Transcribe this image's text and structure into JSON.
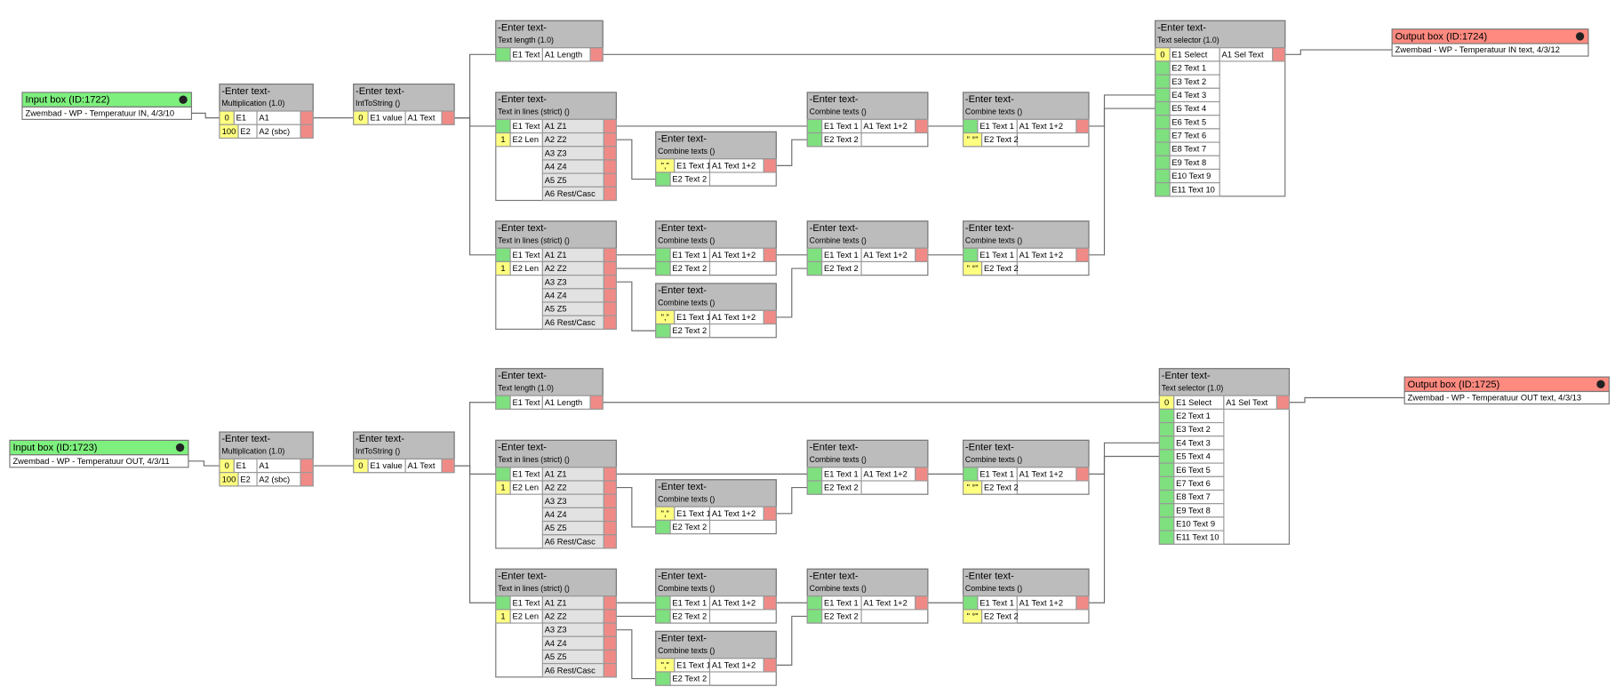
{
  "groups": [
    {
      "blocks": [
        {
          "header": "Input box (ID:1722)",
          "text": "Zwembad - WP - Temperatuur IN, 4/3/10"
        },
        {
          "header": "-Enter text-",
          "subtitle": "Multiplication (1.0)",
          "inputs": [
            {
              "label": "E1",
              "const": "0"
            },
            {
              "label": "E2",
              "const": "100"
            }
          ],
          "outputs": [
            "A1",
            "A2 (sbc)"
          ]
        },
        {
          "header": "-Enter text-",
          "subtitle": "IntToString ()",
          "inputs": [
            {
              "label": "E1 value",
              "const": "0"
            }
          ],
          "outputs": [
            "A1 Text"
          ]
        },
        {
          "header": "-Enter text-",
          "subtitle": "Text length (1.0)",
          "inputs": [
            {
              "label": "E1 Text"
            }
          ],
          "outputs": [
            "A1 Length"
          ]
        },
        {
          "header": "-Enter text-",
          "subtitle": "Text in lines (strict) ()",
          "inputs": [
            {
              "label": "E1 Text"
            },
            {
              "label": "E2 Len",
              "const": "1"
            }
          ],
          "outputs": [
            "A1 Z1",
            "A2 Z2",
            "A3 Z3",
            "A4 Z4",
            "A5 Z5",
            "A6 Rest/Casc"
          ]
        },
        {
          "header": "-Enter text-",
          "subtitle": "Combine texts ()",
          "inputs": [
            {
              "label": "E1 Text 1",
              "const": "\",\""
            },
            {
              "label": "E2 Text 2"
            }
          ],
          "outputs": [
            "A1 Text 1+2"
          ]
        },
        {
          "header": "-Enter text-",
          "subtitle": "Combine texts ()",
          "inputs": [
            {
              "label": "E1 Text 1"
            },
            {
              "label": "E2 Text 2"
            }
          ],
          "outputs": [
            "A1 Text 1+2"
          ]
        },
        {
          "header": "-Enter text-",
          "subtitle": "Combine texts ()",
          "inputs": [
            {
              "label": "E1 Text 1"
            },
            {
              "label": "E2 Text 2",
              "const": "\" °\""
            }
          ],
          "outputs": [
            "A1 Text 1+2"
          ]
        },
        {
          "header": "-Enter text-",
          "subtitle": "Text selector (1.0)",
          "inputs": [
            {
              "label": "E1 Select",
              "const": "0"
            },
            {
              "label": "E2 Text 1"
            },
            {
              "label": "E3 Text 2"
            },
            {
              "label": "E4 Text 3"
            },
            {
              "label": "E5 Text 4"
            },
            {
              "label": "E6 Text 5"
            },
            {
              "label": "E7 Text 6"
            },
            {
              "label": "E8 Text 7"
            },
            {
              "label": "E9 Text 8"
            },
            {
              "label": "E10 Text 9"
            },
            {
              "label": "E11 Text 10"
            }
          ],
          "outputs": [
            "A1 Sel Text"
          ]
        },
        {
          "header": "Output box (ID:1724)",
          "text": "Zwembad - WP - Temperatuur IN text, 4/3/12"
        },
        {
          "header": "-Enter text-",
          "subtitle": "Text in lines (strict) ()",
          "inputs": [
            {
              "label": "E1 Text"
            },
            {
              "label": "E2 Len",
              "const": "1"
            }
          ],
          "outputs": [
            "A1 Z1",
            "A2 Z2",
            "A3 Z3",
            "A4 Z4",
            "A5 Z5",
            "A6 Rest/Casc"
          ]
        },
        {
          "header": "-Enter text-",
          "subtitle": "Combine texts ()",
          "inputs": [
            {
              "label": "E1 Text 1"
            },
            {
              "label": "E2 Text 2"
            }
          ],
          "outputs": [
            "A1 Text 1+2"
          ]
        },
        {
          "header": "-Enter text-",
          "subtitle": "Combine texts ()",
          "inputs": [
            {
              "label": "E1 Text 1",
              "const": "\",\""
            },
            {
              "label": "E2 Text 2"
            }
          ],
          "outputs": [
            "A1 Text 1+2"
          ]
        },
        {
          "header": "-Enter text-",
          "subtitle": "Combine texts ()",
          "inputs": [
            {
              "label": "E1 Text 1"
            },
            {
              "label": "E2 Text 2"
            }
          ],
          "outputs": [
            "A1 Text 1+2"
          ]
        },
        {
          "header": "-Enter text-",
          "subtitle": "Combine texts ()",
          "inputs": [
            {
              "label": "E1 Text 1"
            },
            {
              "label": "E2 Text 2",
              "const": "\" °\""
            }
          ],
          "outputs": [
            "A1 Text 1+2"
          ]
        }
      ]
    },
    {
      "blocks": [
        {
          "header": "Input box (ID:1723)",
          "text": "Zwembad - WP - Temperatuur OUT, 4/3/11"
        },
        {
          "header": "-Enter text-",
          "subtitle": "Multiplication (1.0)",
          "inputs": [
            {
              "label": "E1",
              "const": "0"
            },
            {
              "label": "E2",
              "const": "100"
            }
          ],
          "outputs": [
            "A1",
            "A2 (sbc)"
          ]
        },
        {
          "header": "-Enter text-",
          "subtitle": "IntToString ()",
          "inputs": [
            {
              "label": "E1 value",
              "const": "0"
            }
          ],
          "outputs": [
            "A1 Text"
          ]
        },
        {
          "header": "-Enter text-",
          "subtitle": "Text length (1.0)",
          "inputs": [
            {
              "label": "E1 Text"
            }
          ],
          "outputs": [
            "A1 Length"
          ]
        },
        {
          "header": "-Enter text-",
          "subtitle": "Text in lines (strict) ()",
          "inputs": [
            {
              "label": "E1 Text"
            },
            {
              "label": "E2 Len",
              "const": "1"
            }
          ],
          "outputs": [
            "A1 Z1",
            "A2 Z2",
            "A3 Z3",
            "A4 Z4",
            "A5 Z5",
            "A6 Rest/Casc"
          ]
        },
        {
          "header": "-Enter text-",
          "subtitle": "Combine texts ()",
          "inputs": [
            {
              "label": "E1 Text 1",
              "const": "\",\""
            },
            {
              "label": "E2 Text 2"
            }
          ],
          "outputs": [
            "A1 Text 1+2"
          ]
        },
        {
          "header": "-Enter text-",
          "subtitle": "Combine texts ()",
          "inputs": [
            {
              "label": "E1 Text 1"
            },
            {
              "label": "E2 Text 2"
            }
          ],
          "outputs": [
            "A1 Text 1+2"
          ]
        },
        {
          "header": "-Enter text-",
          "subtitle": "Combine texts ()",
          "inputs": [
            {
              "label": "E1 Text 1"
            },
            {
              "label": "E2 Text 2",
              "const": "\" °\""
            }
          ],
          "outputs": [
            "A1 Text 1+2"
          ]
        },
        {
          "header": "-Enter text-",
          "subtitle": "Text selector (1.0)",
          "inputs": [
            {
              "label": "E1 Select",
              "const": "0"
            },
            {
              "label": "E2 Text 1"
            },
            {
              "label": "E3 Text 2"
            },
            {
              "label": "E4 Text 3"
            },
            {
              "label": "E5 Text 4"
            },
            {
              "label": "E6 Text 5"
            },
            {
              "label": "E7 Text 6"
            },
            {
              "label": "E8 Text 7"
            },
            {
              "label": "E9 Text 8"
            },
            {
              "label": "E10 Text 9"
            },
            {
              "label": "E11 Text 10"
            }
          ],
          "outputs": [
            "A1 Sel Text"
          ]
        },
        {
          "header": "Output box (ID:1725)",
          "text": "Zwembad - WP - Temperatuur OUT text, 4/3/13"
        },
        {
          "header": "-Enter text-",
          "subtitle": "Text in lines (strict) ()",
          "inputs": [
            {
              "label": "E1 Text"
            },
            {
              "label": "E2 Len",
              "const": "1"
            }
          ],
          "outputs": [
            "A1 Z1",
            "A2 Z2",
            "A3 Z3",
            "A4 Z4",
            "A5 Z5",
            "A6 Rest/Casc"
          ]
        },
        {
          "header": "-Enter text-",
          "subtitle": "Combine texts ()",
          "inputs": [
            {
              "label": "E1 Text 1"
            },
            {
              "label": "E2 Text 2"
            }
          ],
          "outputs": [
            "A1 Text 1+2"
          ]
        },
        {
          "header": "-Enter text-",
          "subtitle": "Combine texts ()",
          "inputs": [
            {
              "label": "E1 Text 1",
              "const": "\",\""
            },
            {
              "label": "E2 Text 2"
            }
          ],
          "outputs": [
            "A1 Text 1+2"
          ]
        },
        {
          "header": "-Enter text-",
          "subtitle": "Combine texts ()",
          "inputs": [
            {
              "label": "E1 Text 1"
            },
            {
              "label": "E2 Text 2"
            }
          ],
          "outputs": [
            "A1 Text 1+2"
          ]
        },
        {
          "header": "-Enter text-",
          "subtitle": "Combine texts ()",
          "inputs": [
            {
              "label": "E1 Text 1"
            },
            {
              "label": "E2 Text 2",
              "const": "\" °\""
            }
          ],
          "outputs": [
            "A1 Text 1+2"
          ]
        }
      ]
    }
  ]
}
